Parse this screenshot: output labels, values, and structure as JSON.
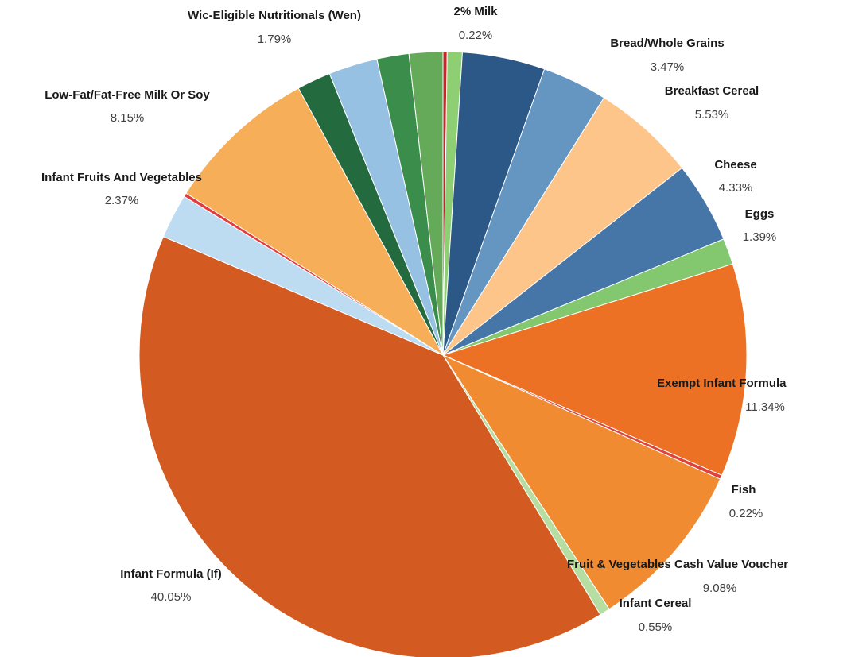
{
  "chart_data": {
    "type": "pie",
    "categories": [
      "2% Milk",
      null,
      null,
      "Bread/Whole Grains",
      "Breakfast Cereal",
      "Cheese",
      "Eggs",
      "Exempt Infant Formula",
      "Fish",
      "Fruit & Vegetables Cash Value Voucher",
      "Infant Cereal",
      "Infant Formula (If)",
      "Infant Fruits And Vegetables",
      null,
      "Low-Fat/Fat-Free Milk Or Soy",
      null,
      null,
      null,
      "Wic-Eligible Nutritionals (Wen)"
    ],
    "values": [
      0.22,
      0.8,
      4.4,
      3.47,
      5.53,
      4.33,
      1.39,
      11.34,
      0.22,
      9.08,
      0.55,
      40.05,
      2.37,
      0.2,
      8.15,
      1.8,
      2.6,
      1.7,
      1.79
    ],
    "value_labels": [
      "0.22%",
      null,
      null,
      "3.47%",
      "5.53%",
      "4.33%",
      "1.39%",
      "11.34%",
      "0.22%",
      "9.08%",
      "0.55%",
      "40.05%",
      "2.37%",
      null,
      "8.15%",
      null,
      null,
      null,
      "1.79%"
    ],
    "colors": [
      "#c0262c",
      "#8fcf74",
      "#2c5887",
      "#6595c1",
      "#fdc58a",
      "#4676a8",
      "#83c86f",
      "#ed7124",
      "#e0413a",
      "#f08b31",
      "#b6dea2",
      "#d35b21",
      "#bddcf1",
      "#e33b3b",
      "#f7ae58",
      "#236a3f",
      "#97c1e2",
      "#3a8d4a",
      "#65aa58"
    ]
  }
}
